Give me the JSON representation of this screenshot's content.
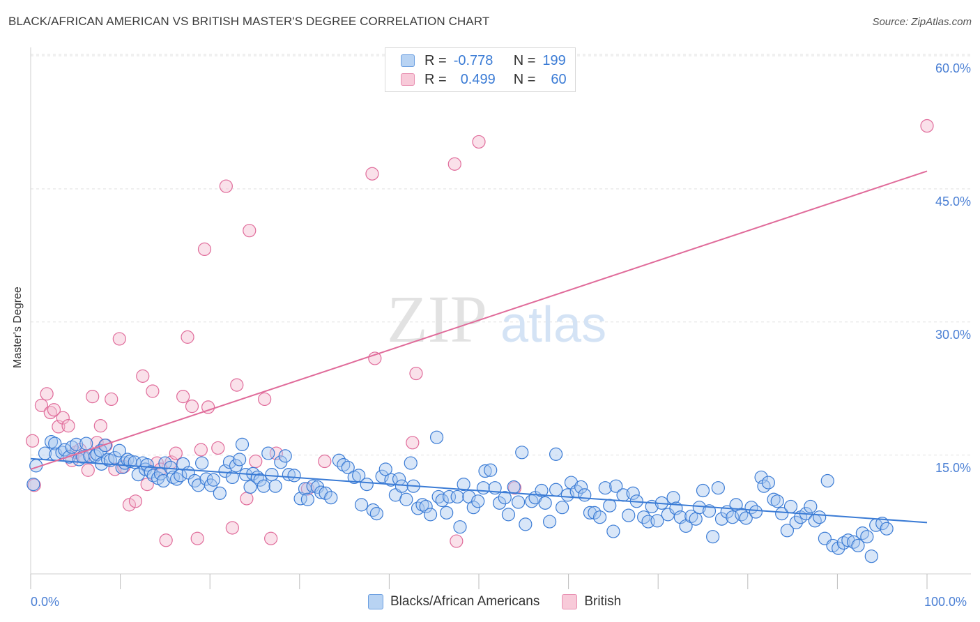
{
  "title": "BLACK/AFRICAN AMERICAN VS BRITISH MASTER'S DEGREE CORRELATION CHART",
  "source": "Source: ZipAtlas.com",
  "watermark": {
    "zip": "ZIP",
    "atlas": "atlas"
  },
  "legend": {
    "blue": {
      "r_label": "R =",
      "r_value": "-0.778",
      "n_label": "N =",
      "n_value": "199"
    },
    "pink": {
      "r_label": "R =",
      "r_value": "0.499",
      "n_label": "N =",
      "n_value": "60"
    }
  },
  "colors": {
    "blue": "#3a7bd5",
    "blue_fill": "#a9c8f0",
    "pink": "#e06b9a",
    "pink_fill": "#f5bcd0",
    "tick": "#4a7fd4"
  },
  "chart_data": {
    "type": "scatter",
    "xlabel": "",
    "ylabel": "Master's Degree",
    "xlim": [
      0,
      100
    ],
    "ylim": [
      0,
      62
    ],
    "x_ticks": [
      "0.0%",
      "100.0%"
    ],
    "y_ticks": [
      {
        "value": 15,
        "label": "15.0%"
      },
      {
        "value": 30,
        "label": "30.0%"
      },
      {
        "value": 45,
        "label": "45.0%"
      },
      {
        "value": 60,
        "label": "60.0%"
      }
    ],
    "grid": true,
    "series": [
      {
        "name": "Blacks/African Americans",
        "color": "#3a7bd5",
        "trend": {
          "x": [
            0,
            100
          ],
          "y": [
            14.6,
            7.4
          ]
        },
        "points": [
          [
            0.3,
            11.7
          ],
          [
            0.6,
            13.8
          ],
          [
            1.6,
            15.2
          ],
          [
            2.3,
            16.5
          ],
          [
            2.7,
            16.3
          ],
          [
            2.8,
            15.1
          ],
          [
            3.5,
            15.3
          ],
          [
            3.8,
            15.6
          ],
          [
            4.3,
            14.8
          ],
          [
            4.6,
            15.9
          ],
          [
            5.1,
            16.2
          ],
          [
            5.4,
            14.5
          ],
          [
            5.8,
            14.8
          ],
          [
            6.2,
            16.3
          ],
          [
            6.6,
            14.9
          ],
          [
            7.2,
            14.9
          ],
          [
            7.4,
            15.1
          ],
          [
            7.8,
            15.5
          ],
          [
            7.9,
            14.0
          ],
          [
            8.3,
            16.1
          ],
          [
            8.6,
            14.5
          ],
          [
            8.9,
            14.4
          ],
          [
            9.4,
            14.7
          ],
          [
            9.9,
            15.5
          ],
          [
            10.2,
            13.6
          ],
          [
            10.5,
            14.1
          ],
          [
            10.8,
            14.5
          ],
          [
            11.1,
            14.3
          ],
          [
            11.6,
            14.2
          ],
          [
            12.0,
            12.8
          ],
          [
            12.5,
            14.1
          ],
          [
            12.8,
            13.4
          ],
          [
            13.0,
            13.9
          ],
          [
            13.4,
            13.1
          ],
          [
            13.7,
            12.7
          ],
          [
            14.2,
            12.4
          ],
          [
            14.5,
            12.9
          ],
          [
            14.8,
            12.1
          ],
          [
            15.0,
            14.1
          ],
          [
            15.6,
            13.6
          ],
          [
            15.9,
            12.5
          ],
          [
            16.3,
            12.3
          ],
          [
            16.7,
            12.7
          ],
          [
            17.0,
            14.0
          ],
          [
            17.6,
            13.0
          ],
          [
            18.3,
            12.1
          ],
          [
            18.7,
            11.6
          ],
          [
            19.1,
            14.1
          ],
          [
            19.6,
            12.3
          ],
          [
            20.1,
            11.6
          ],
          [
            20.4,
            12.2
          ],
          [
            21.1,
            10.7
          ],
          [
            21.7,
            13.2
          ],
          [
            22.2,
            14.2
          ],
          [
            22.5,
            12.5
          ],
          [
            22.9,
            13.8
          ],
          [
            23.3,
            14.5
          ],
          [
            23.6,
            16.2
          ],
          [
            24.0,
            12.8
          ],
          [
            24.5,
            11.4
          ],
          [
            24.8,
            12.9
          ],
          [
            25.3,
            12.5
          ],
          [
            25.6,
            12.2
          ],
          [
            26.0,
            11.5
          ],
          [
            26.5,
            15.2
          ],
          [
            26.9,
            12.8
          ],
          [
            27.3,
            11.5
          ],
          [
            27.9,
            14.2
          ],
          [
            28.4,
            14.9
          ],
          [
            28.8,
            12.8
          ],
          [
            29.4,
            12.7
          ],
          [
            30.1,
            10.1
          ],
          [
            30.6,
            11.2
          ],
          [
            30.9,
            10.0
          ],
          [
            31.5,
            11.5
          ],
          [
            32.0,
            11.4
          ],
          [
            32.4,
            10.8
          ],
          [
            32.9,
            10.7
          ],
          [
            33.5,
            10.2
          ],
          [
            34.4,
            14.4
          ],
          [
            34.9,
            13.9
          ],
          [
            35.4,
            13.6
          ],
          [
            36.1,
            12.5
          ],
          [
            36.6,
            12.7
          ],
          [
            36.9,
            9.4
          ],
          [
            37.5,
            11.7
          ],
          [
            38.2,
            8.8
          ],
          [
            38.6,
            8.4
          ],
          [
            39.2,
            12.6
          ],
          [
            39.6,
            13.4
          ],
          [
            40.2,
            12.2
          ],
          [
            40.7,
            10.5
          ],
          [
            41.1,
            12.3
          ],
          [
            41.4,
            11.5
          ],
          [
            41.9,
            10.0
          ],
          [
            42.4,
            14.1
          ],
          [
            42.7,
            11.5
          ],
          [
            43.2,
            9.0
          ],
          [
            43.7,
            9.4
          ],
          [
            44.1,
            9.2
          ],
          [
            44.6,
            8.3
          ],
          [
            45.3,
            17.0
          ],
          [
            45.5,
            10.3
          ],
          [
            45.9,
            9.9
          ],
          [
            46.4,
            8.5
          ],
          [
            46.7,
            10.3
          ],
          [
            47.6,
            10.3
          ],
          [
            47.9,
            6.9
          ],
          [
            48.3,
            11.7
          ],
          [
            48.9,
            10.3
          ],
          [
            49.4,
            9.1
          ],
          [
            49.9,
            9.8
          ],
          [
            50.5,
            11.3
          ],
          [
            50.7,
            13.2
          ],
          [
            51.3,
            13.3
          ],
          [
            51.8,
            11.3
          ],
          [
            52.3,
            9.6
          ],
          [
            52.9,
            10.2
          ],
          [
            53.3,
            8.3
          ],
          [
            53.9,
            11.4
          ],
          [
            54.4,
            9.7
          ],
          [
            54.8,
            15.3
          ],
          [
            55.2,
            7.2
          ],
          [
            55.9,
            9.8
          ],
          [
            56.3,
            10.2
          ],
          [
            57.0,
            11.0
          ],
          [
            57.4,
            9.6
          ],
          [
            57.9,
            7.5
          ],
          [
            58.6,
            11.1
          ],
          [
            58.6,
            15.1
          ],
          [
            59.3,
            9.1
          ],
          [
            59.9,
            10.5
          ],
          [
            60.3,
            11.9
          ],
          [
            60.9,
            10.9
          ],
          [
            61.4,
            11.4
          ],
          [
            61.8,
            10.5
          ],
          [
            62.4,
            8.5
          ],
          [
            62.9,
            8.5
          ],
          [
            63.5,
            8.0
          ],
          [
            64.1,
            11.3
          ],
          [
            64.6,
            9.3
          ],
          [
            65.0,
            6.4
          ],
          [
            65.3,
            11.5
          ],
          [
            66.1,
            10.5
          ],
          [
            66.7,
            8.2
          ],
          [
            67.2,
            10.7
          ],
          [
            67.6,
            9.8
          ],
          [
            68.4,
            8.0
          ],
          [
            68.9,
            7.5
          ],
          [
            69.3,
            9.2
          ],
          [
            69.9,
            7.6
          ],
          [
            70.4,
            9.6
          ],
          [
            71.1,
            8.3
          ],
          [
            71.7,
            10.2
          ],
          [
            72.0,
            9.0
          ],
          [
            72.5,
            8.0
          ],
          [
            73.1,
            7.0
          ],
          [
            73.7,
            8.1
          ],
          [
            74.2,
            7.8
          ],
          [
            74.6,
            9.1
          ],
          [
            75.0,
            11.0
          ],
          [
            75.7,
            8.7
          ],
          [
            76.1,
            5.8
          ],
          [
            76.7,
            11.3
          ],
          [
            77.1,
            7.8
          ],
          [
            77.7,
            8.6
          ],
          [
            78.3,
            8.0
          ],
          [
            78.7,
            9.4
          ],
          [
            79.3,
            8.3
          ],
          [
            79.8,
            7.9
          ],
          [
            80.4,
            9.1
          ],
          [
            80.9,
            8.6
          ],
          [
            81.5,
            12.5
          ],
          [
            81.8,
            11.5
          ],
          [
            82.3,
            11.9
          ],
          [
            82.9,
            10.0
          ],
          [
            83.3,
            9.8
          ],
          [
            83.8,
            8.4
          ],
          [
            84.4,
            6.5
          ],
          [
            84.8,
            9.2
          ],
          [
            85.4,
            7.4
          ],
          [
            85.9,
            8.0
          ],
          [
            86.5,
            8.4
          ],
          [
            87.0,
            9.2
          ],
          [
            87.5,
            7.6
          ],
          [
            88.0,
            8.0
          ],
          [
            88.6,
            5.6
          ],
          [
            88.9,
            12.1
          ],
          [
            89.5,
            4.8
          ],
          [
            90.1,
            4.5
          ],
          [
            90.7,
            5.1
          ],
          [
            91.2,
            5.4
          ],
          [
            91.8,
            5.2
          ],
          [
            92.3,
            4.8
          ],
          [
            92.8,
            6.2
          ],
          [
            93.3,
            5.8
          ],
          [
            93.8,
            3.6
          ],
          [
            94.3,
            7.1
          ],
          [
            95.0,
            7.3
          ],
          [
            95.5,
            6.7
          ]
        ]
      },
      {
        "name": "British",
        "color": "#e06b9a",
        "trend": {
          "x": [
            0,
            100
          ],
          "y": [
            13.4,
            47.0
          ]
        },
        "points": [
          [
            0.2,
            16.6
          ],
          [
            0.4,
            11.6
          ],
          [
            1.2,
            20.6
          ],
          [
            1.8,
            21.9
          ],
          [
            2.2,
            19.8
          ],
          [
            2.6,
            20.1
          ],
          [
            3.1,
            18.2
          ],
          [
            3.6,
            19.2
          ],
          [
            4.2,
            18.3
          ],
          [
            4.6,
            14.4
          ],
          [
            5.0,
            15.3
          ],
          [
            5.5,
            15.6
          ],
          [
            6.0,
            14.8
          ],
          [
            6.4,
            13.3
          ],
          [
            6.9,
            21.6
          ],
          [
            7.4,
            16.4
          ],
          [
            7.8,
            18.3
          ],
          [
            8.4,
            16.1
          ],
          [
            9.0,
            21.3
          ],
          [
            9.4,
            13.4
          ],
          [
            9.9,
            28.1
          ],
          [
            10.4,
            13.7
          ],
          [
            11.0,
            9.4
          ],
          [
            11.7,
            9.8
          ],
          [
            12.5,
            23.9
          ],
          [
            13.0,
            11.7
          ],
          [
            13.6,
            22.2
          ],
          [
            14.1,
            14.1
          ],
          [
            14.5,
            13.4
          ],
          [
            15.1,
            5.4
          ],
          [
            15.7,
            14.2
          ],
          [
            16.2,
            15.2
          ],
          [
            17.0,
            21.6
          ],
          [
            17.5,
            28.3
          ],
          [
            18.0,
            20.5
          ],
          [
            18.6,
            5.6
          ],
          [
            19.0,
            15.6
          ],
          [
            19.4,
            38.2
          ],
          [
            19.8,
            20.4
          ],
          [
            20.9,
            15.8
          ],
          [
            21.8,
            45.3
          ],
          [
            22.5,
            6.8
          ],
          [
            23.0,
            22.9
          ],
          [
            24.1,
            10.1
          ],
          [
            24.4,
            40.3
          ],
          [
            25.1,
            14.3
          ],
          [
            26.1,
            21.3
          ],
          [
            26.8,
            5.6
          ],
          [
            27.4,
            15.2
          ],
          [
            30.9,
            11.2
          ],
          [
            32.8,
            14.3
          ],
          [
            38.1,
            46.7
          ],
          [
            38.4,
            25.9
          ],
          [
            42.6,
            16.4
          ],
          [
            43.0,
            24.2
          ],
          [
            47.3,
            47.8
          ],
          [
            47.5,
            5.3
          ],
          [
            50.0,
            50.3
          ],
          [
            100.0,
            52.1
          ],
          [
            54.0,
            11.3
          ]
        ]
      }
    ]
  },
  "bottom_legend": {
    "blue_label": "Blacks/African Americans",
    "pink_label": "British"
  }
}
